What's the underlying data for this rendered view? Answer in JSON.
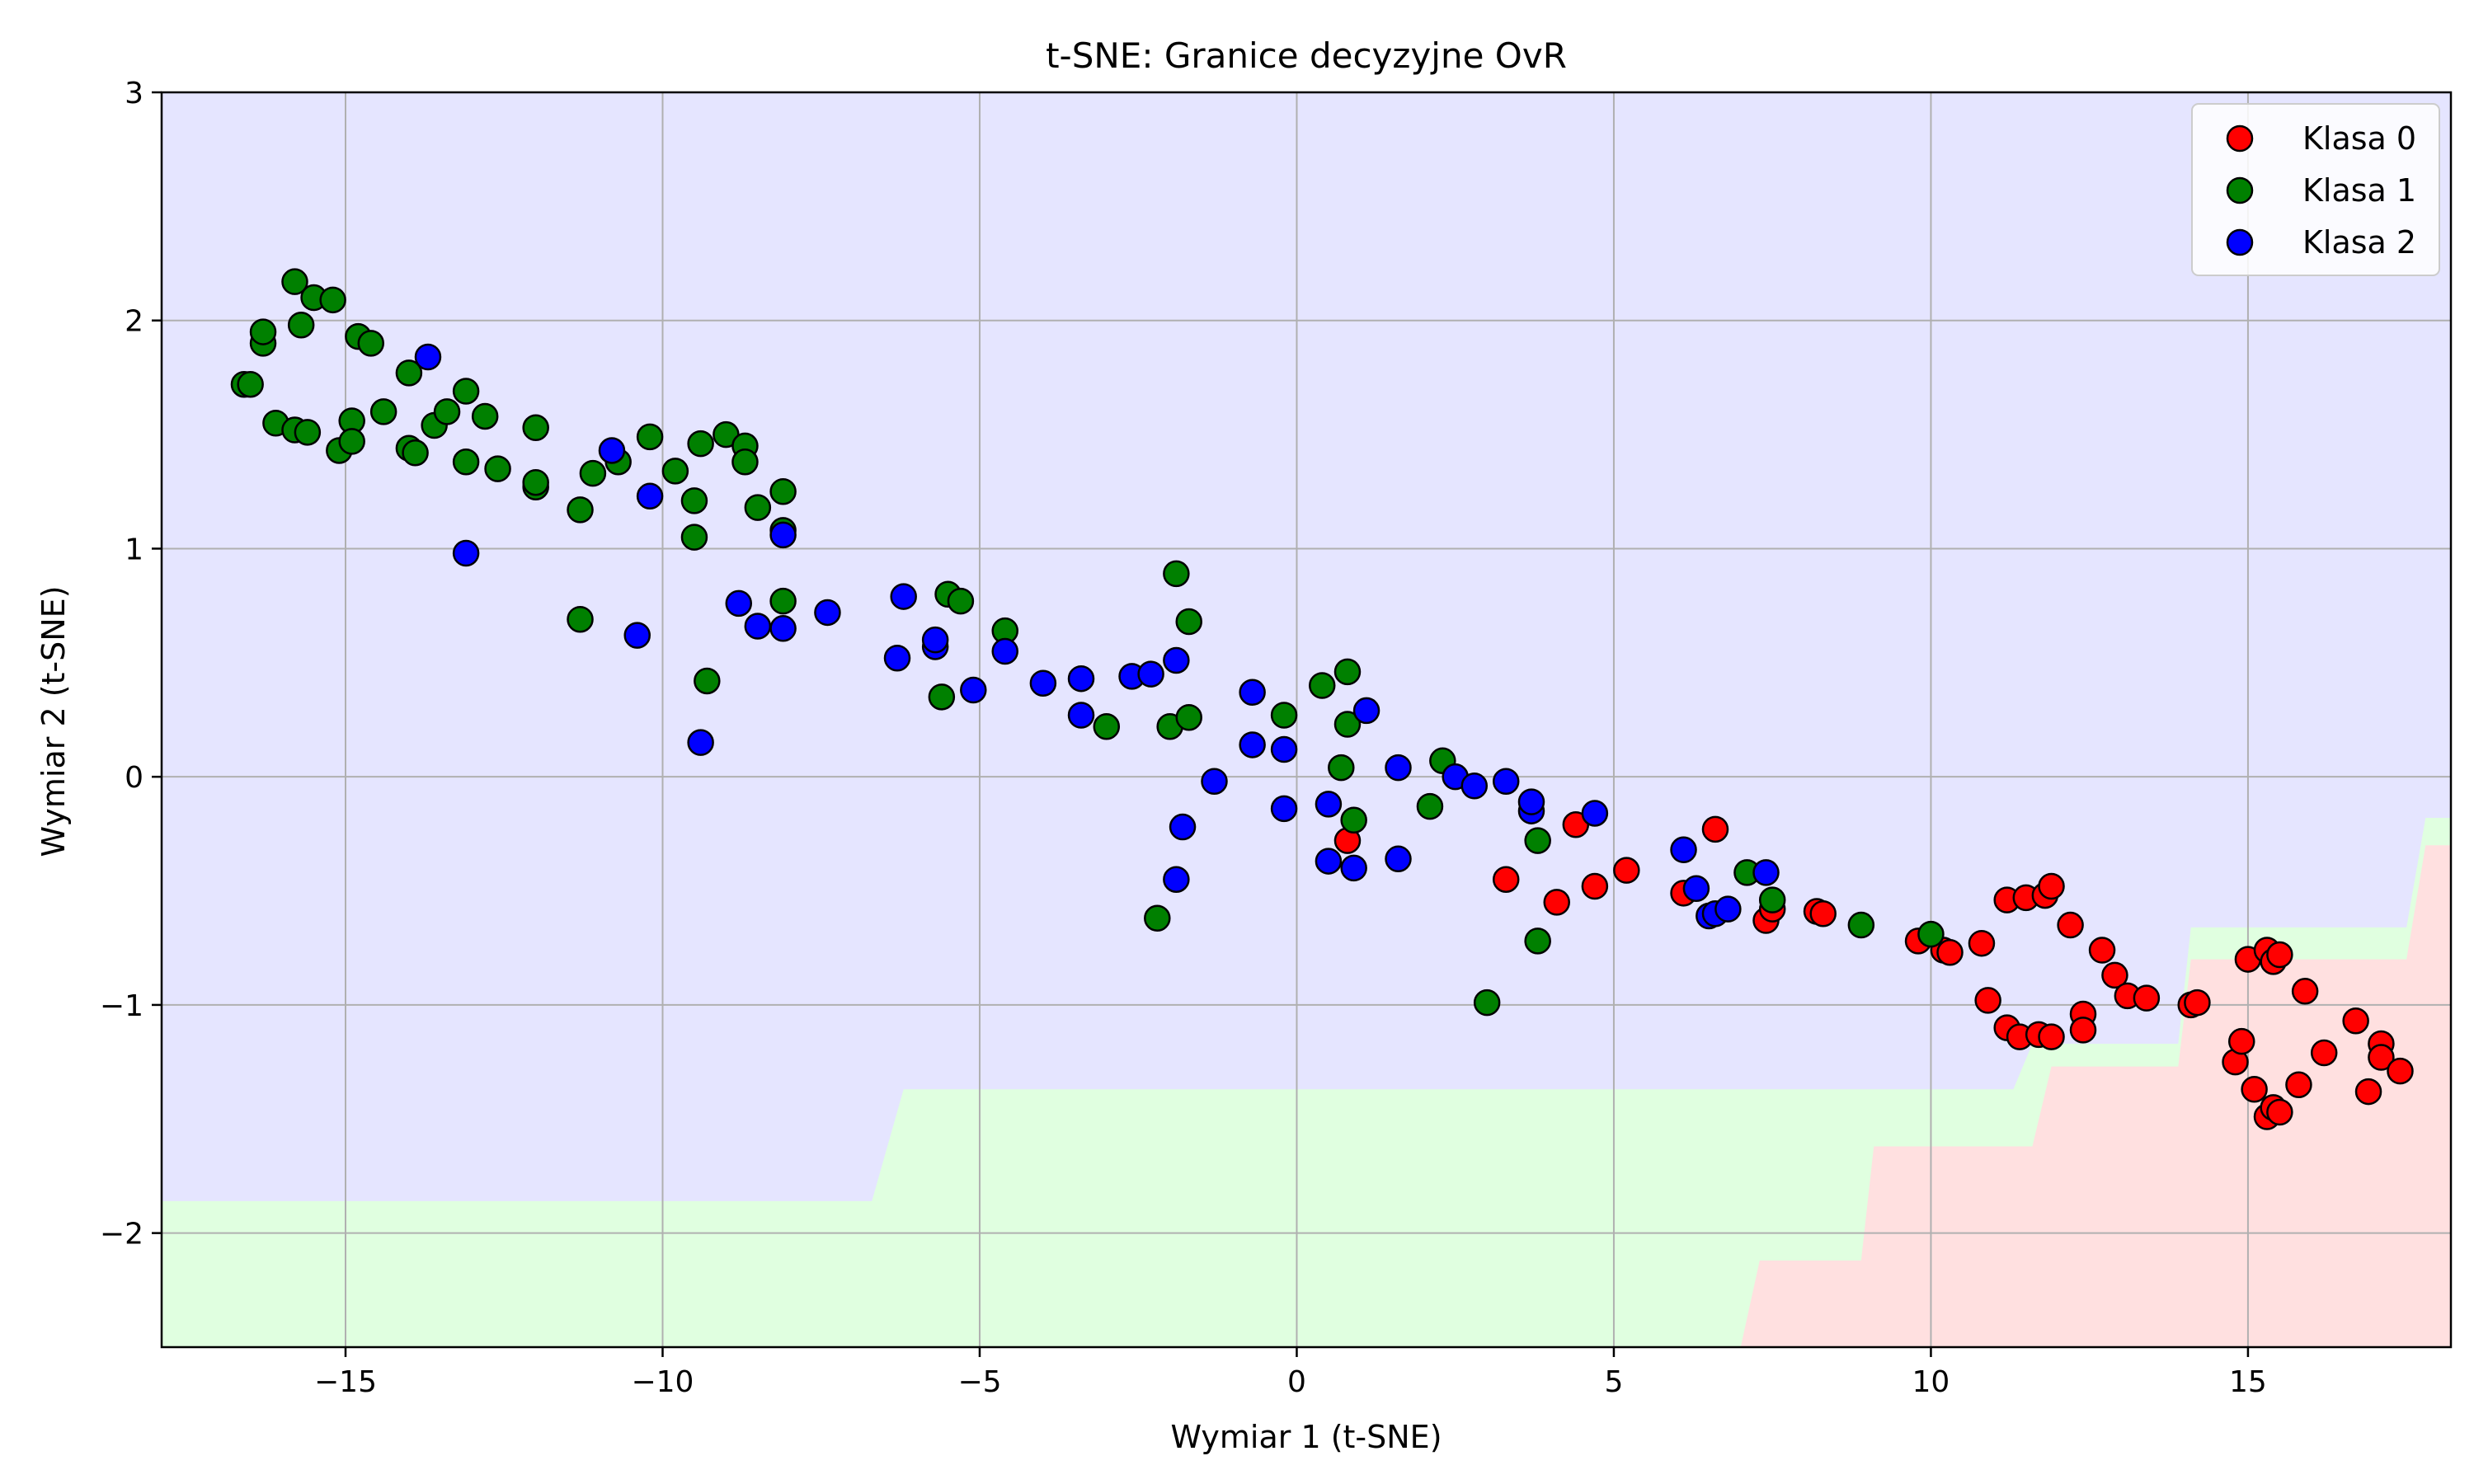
{
  "chart_data": {
    "type": "scatter",
    "title": "t-SNE: Granice decyzyjne OvR",
    "xlabel": "Wymiar 1 (t-SNE)",
    "ylabel": "Wymiar 2 (t-SNE)",
    "xlim": [
      -17.9,
      18.2
    ],
    "ylim": [
      -2.5,
      3.0
    ],
    "xticks": [
      -15,
      -10,
      -5,
      0,
      5,
      10,
      15
    ],
    "yticks": [
      -2,
      -1,
      0,
      1,
      2,
      3
    ],
    "xtick_labels": [
      "−15",
      "−10",
      "−5",
      "0",
      "5",
      "10",
      "15"
    ],
    "ytick_labels": [
      "−2",
      "−1",
      "0",
      "1",
      "2",
      "3"
    ],
    "grid": true,
    "legend_position": "top-right",
    "decision_regions": [
      {
        "class": "Klasa 0",
        "color": "#ffe0e0"
      },
      {
        "class": "Klasa 1",
        "color": "#e0ffe0"
      },
      {
        "class": "Klasa 2",
        "color": "#e5e5ff"
      }
    ],
    "series": [
      {
        "name": "Klasa 0",
        "color": "#ff0000",
        "points": [
          [
            0.8,
            -0.28
          ],
          [
            3.3,
            -0.45
          ],
          [
            4.1,
            -0.55
          ],
          [
            4.4,
            -0.21
          ],
          [
            4.7,
            -0.48
          ],
          [
            5.2,
            -0.41
          ],
          [
            6.1,
            -0.51
          ],
          [
            6.6,
            -0.23
          ],
          [
            7.4,
            -0.63
          ],
          [
            7.5,
            -0.58
          ],
          [
            8.2,
            -0.59
          ],
          [
            8.3,
            -0.6
          ],
          [
            9.8,
            -0.72
          ],
          [
            10.2,
            -0.76
          ],
          [
            10.3,
            -0.77
          ],
          [
            10.8,
            -0.73
          ],
          [
            10.9,
            -0.98
          ],
          [
            11.2,
            -1.1
          ],
          [
            11.2,
            -0.54
          ],
          [
            11.4,
            -1.14
          ],
          [
            11.5,
            -0.53
          ],
          [
            11.7,
            -1.13
          ],
          [
            11.8,
            -0.52
          ],
          [
            11.9,
            -0.48
          ],
          [
            11.9,
            -1.14
          ],
          [
            12.2,
            -0.65
          ],
          [
            12.4,
            -1.04
          ],
          [
            12.4,
            -1.11
          ],
          [
            12.7,
            -0.76
          ],
          [
            12.9,
            -0.87
          ],
          [
            13.1,
            -0.96
          ],
          [
            13.4,
            -0.97
          ],
          [
            14.1,
            -1.0
          ],
          [
            14.2,
            -0.99
          ],
          [
            14.8,
            -1.25
          ],
          [
            14.9,
            -1.16
          ],
          [
            15.0,
            -0.8
          ],
          [
            15.1,
            -1.37
          ],
          [
            15.3,
            -0.76
          ],
          [
            15.3,
            -1.49
          ],
          [
            15.4,
            -1.45
          ],
          [
            15.4,
            -0.81
          ],
          [
            15.5,
            -0.78
          ],
          [
            15.5,
            -1.47
          ],
          [
            15.8,
            -1.35
          ],
          [
            15.9,
            -0.94
          ],
          [
            16.2,
            -1.21
          ],
          [
            16.7,
            -1.07
          ],
          [
            16.9,
            -1.38
          ],
          [
            17.1,
            -1.17
          ],
          [
            17.1,
            -1.23
          ],
          [
            17.4,
            -1.29
          ]
        ]
      },
      {
        "name": "Klasa 1",
        "color": "#008000",
        "points": [
          [
            -16.6,
            1.72
          ],
          [
            -16.5,
            1.72
          ],
          [
            -16.3,
            1.9
          ],
          [
            -16.3,
            1.95
          ],
          [
            -16.1,
            1.55
          ],
          [
            -15.8,
            1.52
          ],
          [
            -15.8,
            2.17
          ],
          [
            -15.7,
            1.98
          ],
          [
            -15.6,
            1.51
          ],
          [
            -15.5,
            2.1
          ],
          [
            -15.2,
            2.09
          ],
          [
            -15.1,
            1.43
          ],
          [
            -14.9,
            1.56
          ],
          [
            -14.9,
            1.47
          ],
          [
            -14.8,
            1.93
          ],
          [
            -14.6,
            1.9
          ],
          [
            -14.4,
            1.6
          ],
          [
            -14.0,
            1.44
          ],
          [
            -14.0,
            1.77
          ],
          [
            -13.9,
            1.42
          ],
          [
            -13.6,
            1.54
          ],
          [
            -13.4,
            1.6
          ],
          [
            -13.1,
            1.69
          ],
          [
            -13.1,
            1.38
          ],
          [
            -12.8,
            1.58
          ],
          [
            -12.6,
            1.35
          ],
          [
            -12.0,
            1.53
          ],
          [
            -12.0,
            1.27
          ],
          [
            -12.0,
            1.29
          ],
          [
            -11.3,
            1.17
          ],
          [
            -11.3,
            0.69
          ],
          [
            -11.1,
            1.33
          ],
          [
            -10.7,
            1.38
          ],
          [
            -10.2,
            1.49
          ],
          [
            -9.8,
            1.34
          ],
          [
            -9.5,
            1.21
          ],
          [
            -9.5,
            1.05
          ],
          [
            -9.4,
            1.46
          ],
          [
            -9.3,
            0.42
          ],
          [
            -9.0,
            1.5
          ],
          [
            -8.7,
            1.45
          ],
          [
            -8.7,
            1.38
          ],
          [
            -8.5,
            1.18
          ],
          [
            -8.1,
            1.25
          ],
          [
            -8.1,
            0.77
          ],
          [
            -8.1,
            1.08
          ],
          [
            -5.6,
            0.35
          ],
          [
            -5.5,
            0.8
          ],
          [
            -5.3,
            0.77
          ],
          [
            -4.6,
            0.64
          ],
          [
            -3.0,
            0.22
          ],
          [
            -2.2,
            -0.62
          ],
          [
            -2.0,
            0.22
          ],
          [
            -1.9,
            0.89
          ],
          [
            -1.7,
            0.26
          ],
          [
            -1.7,
            0.68
          ],
          [
            -0.2,
            0.27
          ],
          [
            0.4,
            0.4
          ],
          [
            0.7,
            0.04
          ],
          [
            0.8,
            0.46
          ],
          [
            0.8,
            0.23
          ],
          [
            0.9,
            -0.19
          ],
          [
            2.1,
            -0.13
          ],
          [
            2.3,
            0.07
          ],
          [
            3.0,
            -0.99
          ],
          [
            3.8,
            -0.28
          ],
          [
            3.8,
            -0.72
          ],
          [
            7.1,
            -0.42
          ],
          [
            7.5,
            -0.54
          ],
          [
            8.9,
            -0.65
          ],
          [
            10.0,
            -0.69
          ]
        ]
      },
      {
        "name": "Klasa 2",
        "color": "#0000ff",
        "points": [
          [
            -13.7,
            1.84
          ],
          [
            -13.1,
            0.98
          ],
          [
            -10.8,
            1.43
          ],
          [
            -10.4,
            0.62
          ],
          [
            -10.2,
            1.23
          ],
          [
            -9.4,
            0.15
          ],
          [
            -8.8,
            0.76
          ],
          [
            -8.5,
            0.66
          ],
          [
            -8.1,
            0.65
          ],
          [
            -8.1,
            1.06
          ],
          [
            -7.4,
            0.72
          ],
          [
            -6.3,
            0.52
          ],
          [
            -6.2,
            0.79
          ],
          [
            -5.7,
            0.57
          ],
          [
            -5.7,
            0.6
          ],
          [
            -5.1,
            0.38
          ],
          [
            -4.6,
            0.55
          ],
          [
            -4.0,
            0.41
          ],
          [
            -3.4,
            0.43
          ],
          [
            -3.4,
            0.27
          ],
          [
            -2.6,
            0.44
          ],
          [
            -2.3,
            0.45
          ],
          [
            -1.9,
            0.51
          ],
          [
            -1.9,
            -0.45
          ],
          [
            -1.8,
            -0.22
          ],
          [
            -1.3,
            -0.02
          ],
          [
            -0.7,
            0.37
          ],
          [
            -0.7,
            0.14
          ],
          [
            -0.2,
            0.12
          ],
          [
            -0.2,
            -0.14
          ],
          [
            0.5,
            -0.12
          ],
          [
            0.5,
            -0.37
          ],
          [
            0.9,
            -0.4
          ],
          [
            1.1,
            0.29
          ],
          [
            1.6,
            0.04
          ],
          [
            1.6,
            -0.36
          ],
          [
            2.5,
            0.0
          ],
          [
            2.8,
            -0.04
          ],
          [
            3.3,
            -0.02
          ],
          [
            3.7,
            -0.15
          ],
          [
            3.7,
            -0.11
          ],
          [
            4.7,
            -0.16
          ],
          [
            6.1,
            -0.32
          ],
          [
            6.3,
            -0.49
          ],
          [
            6.5,
            -0.61
          ],
          [
            6.6,
            -0.6
          ],
          [
            6.8,
            -0.58
          ],
          [
            7.4,
            -0.42
          ]
        ]
      }
    ]
  }
}
